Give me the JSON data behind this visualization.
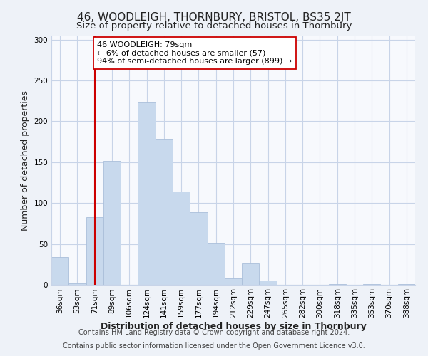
{
  "title": "46, WOODLEIGH, THORNBURY, BRISTOL, BS35 2JT",
  "subtitle": "Size of property relative to detached houses in Thornbury",
  "xlabel": "Distribution of detached houses by size in Thornbury",
  "ylabel": "Number of detached properties",
  "bar_labels": [
    "36sqm",
    "53sqm",
    "71sqm",
    "89sqm",
    "106sqm",
    "124sqm",
    "141sqm",
    "159sqm",
    "177sqm",
    "194sqm",
    "212sqm",
    "229sqm",
    "247sqm",
    "265sqm",
    "282sqm",
    "300sqm",
    "318sqm",
    "335sqm",
    "353sqm",
    "370sqm",
    "388sqm"
  ],
  "bar_values": [
    34,
    2,
    83,
    152,
    0,
    224,
    179,
    114,
    89,
    51,
    8,
    26,
    5,
    0,
    0,
    0,
    1,
    0,
    1,
    0,
    1
  ],
  "bar_color": "#c8d9ed",
  "bar_edge_color": "#aabfda",
  "marker_x_label": "71sqm",
  "marker_line_color": "#cc0000",
  "annotation_text": "46 WOODLEIGH: 79sqm\n← 6% of detached houses are smaller (57)\n94% of semi-detached houses are larger (899) →",
  "annotation_box_color": "#ffffff",
  "annotation_box_edge_color": "#cc0000",
  "ylim": [
    0,
    305
  ],
  "yticks": [
    0,
    50,
    100,
    150,
    200,
    250,
    300
  ],
  "footer1": "Contains HM Land Registry data © Crown copyright and database right 2024.",
  "footer2": "Contains public sector information licensed under the Open Government Licence v3.0.",
  "bg_color": "#eef2f8",
  "plot_bg_color": "#f7f9fd",
  "grid_color": "#c8d4e8",
  "title_fontsize": 11,
  "subtitle_fontsize": 9.5,
  "axis_label_fontsize": 9,
  "tick_fontsize": 7.5,
  "footer_fontsize": 7,
  "annotation_fontsize": 8
}
